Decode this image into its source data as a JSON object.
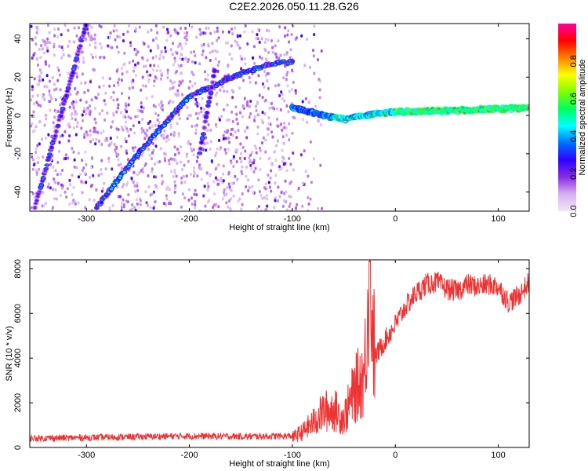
{
  "title": "C2E2.2026.050.11.28.G26",
  "chart_data": [
    {
      "type": "heatmap",
      "xlabel": "Height of straight line (km)",
      "ylabel": "Frequency (Hz)",
      "xlim": [
        -355,
        130
      ],
      "ylim": [
        -50,
        48
      ],
      "xticks": [
        -300,
        -200,
        -100,
        0,
        100
      ],
      "xtick_labels": [
        "-300",
        "-200",
        "-100",
        "0",
        "100"
      ],
      "yticks": [
        -40,
        -20,
        0,
        20,
        40
      ],
      "ytick_labels": [
        "-40",
        "-20",
        "0",
        "20",
        "40"
      ],
      "colorbar": {
        "label": "Normalized spectral amplitude",
        "range": [
          0.0,
          1.0
        ],
        "ticks": [
          0.0,
          0.2,
          0.4,
          0.6,
          0.8
        ],
        "tick_labels": [
          "0.0",
          "0.2",
          "0.4",
          "0.6",
          "0.8"
        ],
        "stops": [
          "#f0e8f8",
          "#d8b0f0",
          "#8a2be2",
          "#3000ff",
          "#0070ff",
          "#00ffff",
          "#00ff60",
          "#80ff00",
          "#ffff00",
          "#ff8000",
          "#ff0000",
          "#ff00a0"
        ]
      },
      "ridge_lines": [
        {
          "name": "steep-diagonal-track",
          "x": [
            -350,
            -300
          ],
          "y": [
            -48,
            48
          ],
          "amplitude": 0.3
        },
        {
          "name": "main-sloped-track",
          "x": [
            -290,
            -250,
            -200,
            -150,
            -120,
            -100
          ],
          "y": [
            -48,
            -20,
            10,
            22,
            27,
            28
          ],
          "amplitude": 0.45
        },
        {
          "name": "ground-track",
          "x": [
            -100,
            -70,
            -50,
            -30,
            0,
            30,
            80,
            130
          ],
          "y": [
            4,
            0,
            -2,
            0,
            2,
            2,
            3,
            4
          ],
          "amplitude": 0.9
        },
        {
          "name": "narrow-streak",
          "x": [
            -190,
            -175
          ],
          "y": [
            -20,
            25
          ],
          "amplitude": 0.3
        }
      ],
      "colors": {
        "axis": "#000000",
        "frame": "#000000"
      }
    },
    {
      "type": "line",
      "xlabel": "Height of straight line (km)",
      "ylabel": "SNR (10 * v/v)",
      "xlim": [
        -355,
        130
      ],
      "ylim": [
        0,
        8400
      ],
      "xticks": [
        -300,
        -200,
        -100,
        0,
        100
      ],
      "xtick_labels": [
        "-300",
        "-200",
        "-100",
        "0",
        "100"
      ],
      "yticks": [
        0,
        2000,
        4000,
        6000,
        8000
      ],
      "ytick_labels": [
        "0",
        "2000",
        "4000",
        "6000",
        "8000"
      ],
      "series": [
        {
          "name": "SNR",
          "color": "#ee3333",
          "x": [
            -355,
            -300,
            -250,
            -200,
            -150,
            -100,
            -90,
            -80,
            -70,
            -60,
            -50,
            -40,
            -30,
            -25,
            -20,
            -10,
            0,
            10,
            20,
            30,
            40,
            50,
            60,
            70,
            80,
            90,
            100,
            110,
            120,
            130
          ],
          "y": [
            350,
            380,
            420,
            450,
            430,
            450,
            700,
            1100,
            1600,
            1700,
            1300,
            2500,
            3300,
            8300,
            4000,
            4800,
            5500,
            6300,
            6900,
            7300,
            7400,
            7100,
            7000,
            7300,
            7200,
            7300,
            7200,
            6500,
            6800,
            7400
          ]
        }
      ]
    }
  ]
}
